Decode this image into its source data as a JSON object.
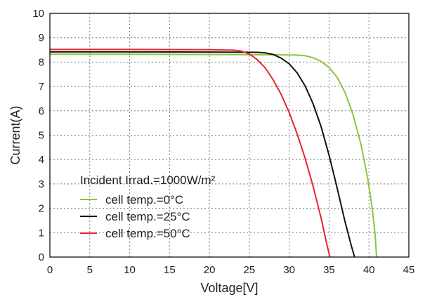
{
  "chart_data": {
    "type": "line",
    "title": "",
    "xlabel": "Voltage[V]",
    "ylabel": "Current(A)",
    "xlim": [
      0,
      45
    ],
    "ylim": [
      0,
      10
    ],
    "xticks": [
      0,
      5,
      10,
      15,
      20,
      25,
      30,
      35,
      40,
      45
    ],
    "yticks": [
      0,
      1,
      2,
      3,
      4,
      5,
      6,
      7,
      8,
      9,
      10
    ],
    "grid": true,
    "legend": {
      "title": "Incident Irrad.=1000W/m²",
      "placement": "lower-left"
    },
    "series": [
      {
        "name": "cell temp.=0°C",
        "color": "#8cc43c",
        "points": [
          [
            0,
            8.32
          ],
          [
            10,
            8.32
          ],
          [
            20,
            8.31
          ],
          [
            28,
            8.3
          ],
          [
            31,
            8.29
          ],
          [
            32,
            8.26
          ],
          [
            33,
            8.18
          ],
          [
            34,
            8.03
          ],
          [
            35,
            7.78
          ],
          [
            36,
            7.38
          ],
          [
            37,
            6.75
          ],
          [
            38,
            5.85
          ],
          [
            39,
            4.62
          ],
          [
            39.8,
            3.3
          ],
          [
            40.3,
            2.25
          ],
          [
            40.6,
            1.45
          ],
          [
            40.8,
            0.8
          ],
          [
            40.95,
            0
          ]
        ]
      },
      {
        "name": "cell temp.=25°C",
        "color": "#111111",
        "points": [
          [
            0,
            8.42
          ],
          [
            10,
            8.42
          ],
          [
            20,
            8.41
          ],
          [
            26,
            8.4
          ],
          [
            27,
            8.38
          ],
          [
            28,
            8.31
          ],
          [
            29,
            8.16
          ],
          [
            30,
            7.93
          ],
          [
            31,
            7.56
          ],
          [
            32,
            7.02
          ],
          [
            33,
            6.29
          ],
          [
            34,
            5.35
          ],
          [
            35,
            4.18
          ],
          [
            36,
            2.85
          ],
          [
            37,
            1.45
          ],
          [
            37.8,
            0.45
          ],
          [
            38.2,
            0
          ]
        ]
      },
      {
        "name": "cell temp.=50°C",
        "color": "#e8262c",
        "points": [
          [
            0,
            8.52
          ],
          [
            10,
            8.52
          ],
          [
            20,
            8.51
          ],
          [
            23,
            8.49
          ],
          [
            24,
            8.45
          ],
          [
            25,
            8.33
          ],
          [
            26,
            8.1
          ],
          [
            27,
            7.76
          ],
          [
            28,
            7.27
          ],
          [
            29,
            6.67
          ],
          [
            30,
            5.93
          ],
          [
            31,
            5.05
          ],
          [
            32,
            4.05
          ],
          [
            33,
            2.9
          ],
          [
            34,
            1.6
          ],
          [
            34.7,
            0.55
          ],
          [
            35.1,
            0
          ]
        ]
      }
    ]
  }
}
